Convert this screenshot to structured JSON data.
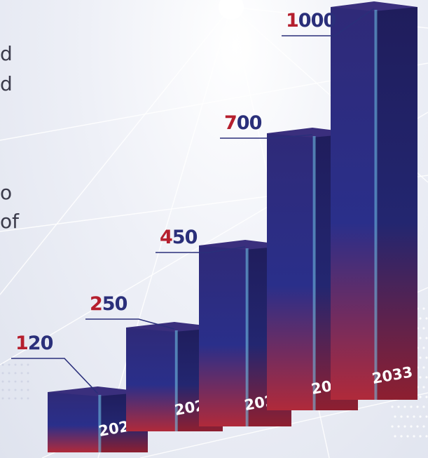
{
  "side_text": {
    "lines": [
      "d",
      "d",
      "o",
      "of"
    ]
  },
  "chart_data": {
    "type": "bar",
    "categories": [
      "2023",
      "2025",
      "2027",
      "2030",
      "2033"
    ],
    "values": [
      120,
      250,
      450,
      700,
      1000
    ],
    "title": "",
    "xlabel": "",
    "ylabel": "",
    "legend": "none",
    "grid": false
  },
  "colors": {
    "bar_top": "#2f2a78",
    "bar_mid": "#2a2f8a",
    "bar_bottom": "#b02a3a",
    "label_blue": "#2a2f7a",
    "label_red": "#b51f2e",
    "leader": "#2a2f7a"
  }
}
